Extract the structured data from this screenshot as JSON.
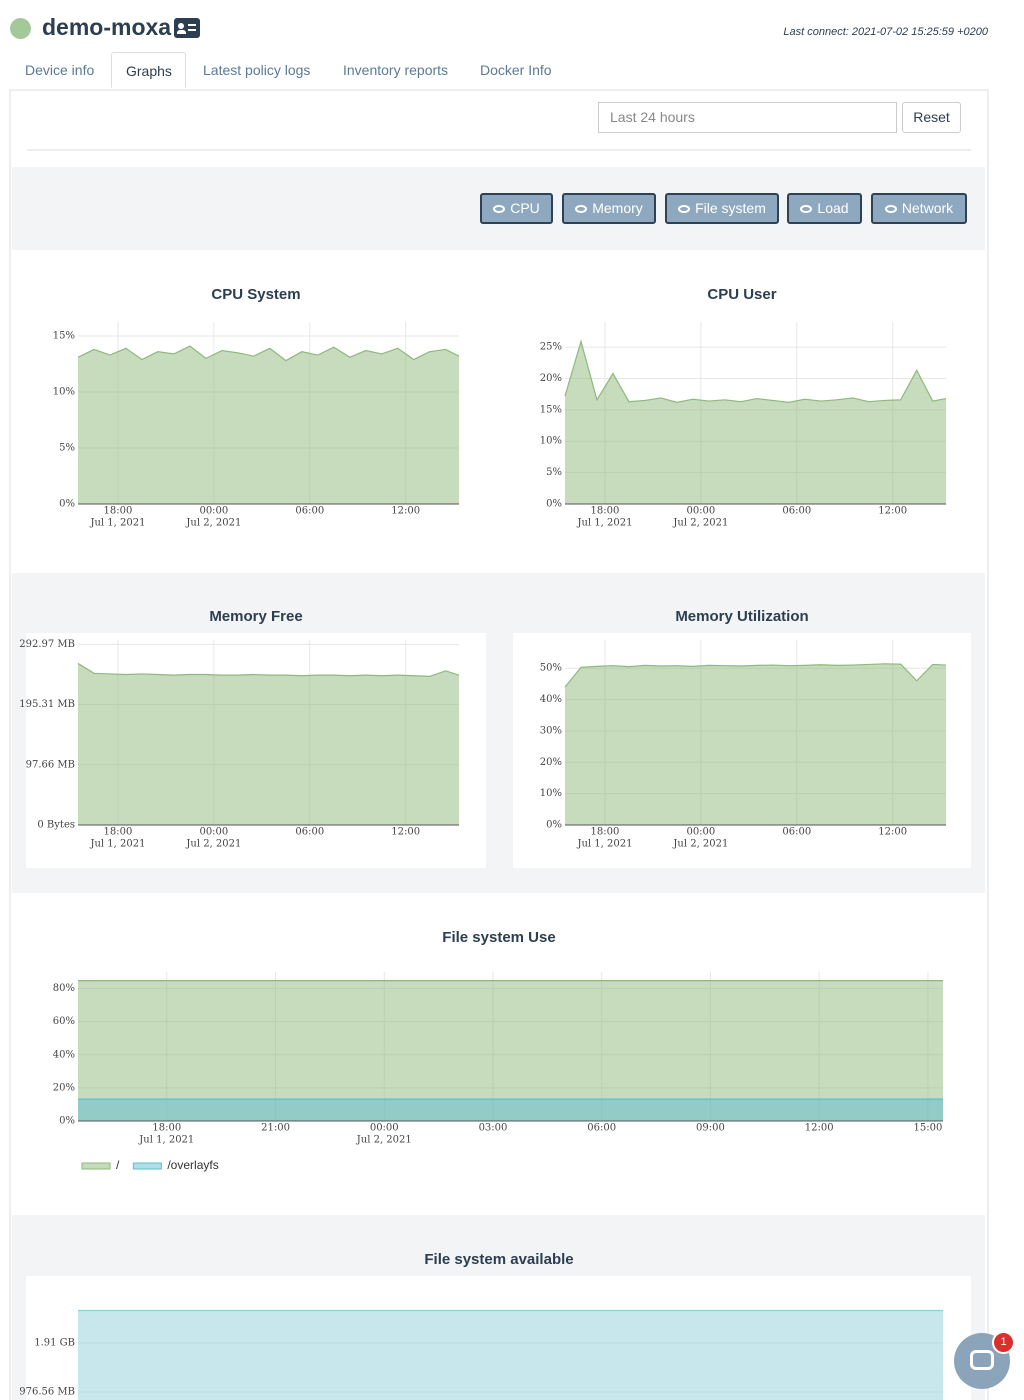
{
  "header": {
    "device": "demo-moxa",
    "last_connect": "Last connect: 2021-07-02 15:25:59 +0200"
  },
  "tabs": [
    "Device info",
    "Graphs",
    "Latest policy logs",
    "Inventory reports",
    "Docker Info"
  ],
  "active_tab": 1,
  "date_range_placeholder": "Last 24 hours",
  "reset_button": "Reset",
  "toggles": [
    "CPU",
    "Memory",
    "File system",
    "Load",
    "Network"
  ],
  "chat_badge": 1,
  "chart_data": [
    {
      "type": "area",
      "title": "CPU System",
      "grid": true,
      "x": [
        "2021-07-01T15:30",
        "2021-07-01T16:30",
        "2021-07-01T17:30",
        "2021-07-01T18:30",
        "2021-07-01T19:30",
        "2021-07-01T20:30",
        "2021-07-01T21:30",
        "2021-07-01T22:30",
        "2021-07-01T23:30",
        "2021-07-02T00:30",
        "2021-07-02T01:30",
        "2021-07-02T02:30",
        "2021-07-02T03:30",
        "2021-07-02T04:30",
        "2021-07-02T05:30",
        "2021-07-02T06:30",
        "2021-07-02T07:30",
        "2021-07-02T08:30",
        "2021-07-02T09:30",
        "2021-07-02T10:30",
        "2021-07-02T11:30",
        "2021-07-02T12:30",
        "2021-07-02T13:30",
        "2021-07-02T14:30",
        "2021-07-02T15:20"
      ],
      "xlim": [
        "2021-07-01T15:30",
        "2021-07-02T15:20"
      ],
      "xticks": [
        {
          "value": "2021-07-01T18:00",
          "label": "18:00",
          "sublabel": "Jul 1, 2021"
        },
        {
          "value": "2021-07-02T00:00",
          "label": "00:00",
          "sublabel": "Jul 2, 2021"
        },
        {
          "value": "2021-07-02T06:00",
          "label": "06:00"
        },
        {
          "value": "2021-07-02T12:00",
          "label": "12:00"
        }
      ],
      "ylim": [
        0,
        16.25
      ],
      "yticks": [
        {
          "value": 0,
          "label": "0%"
        },
        {
          "value": 5,
          "label": "5%"
        },
        {
          "value": 10,
          "label": "10%"
        },
        {
          "value": 15,
          "label": "15%"
        }
      ],
      "series": [
        {
          "color": "#8fb87c",
          "values": [
            13.1,
            13.8,
            13.3,
            13.9,
            12.9,
            13.6,
            13.4,
            14.1,
            13.0,
            13.7,
            13.5,
            13.2,
            13.9,
            12.8,
            13.6,
            13.3,
            14.0,
            13.1,
            13.7,
            13.4,
            13.9,
            12.9,
            13.6,
            13.8,
            13.2
          ]
        }
      ]
    },
    {
      "type": "area",
      "title": "CPU User",
      "grid": true,
      "x": [
        "2021-07-01T15:30",
        "2021-07-01T16:30",
        "2021-07-01T17:30",
        "2021-07-01T18:30",
        "2021-07-01T19:30",
        "2021-07-01T20:30",
        "2021-07-01T21:30",
        "2021-07-01T22:30",
        "2021-07-01T23:30",
        "2021-07-02T00:30",
        "2021-07-02T01:30",
        "2021-07-02T02:30",
        "2021-07-02T03:30",
        "2021-07-02T04:30",
        "2021-07-02T05:30",
        "2021-07-02T06:30",
        "2021-07-02T07:30",
        "2021-07-02T08:30",
        "2021-07-02T09:30",
        "2021-07-02T10:30",
        "2021-07-02T11:30",
        "2021-07-02T12:30",
        "2021-07-02T13:30",
        "2021-07-02T14:30",
        "2021-07-02T15:20"
      ],
      "xlim": [
        "2021-07-01T15:30",
        "2021-07-02T15:20"
      ],
      "xticks": [
        {
          "value": "2021-07-01T18:00",
          "label": "18:00",
          "sublabel": "Jul 1, 2021"
        },
        {
          "value": "2021-07-02T00:00",
          "label": "00:00",
          "sublabel": "Jul 2, 2021"
        },
        {
          "value": "2021-07-02T06:00",
          "label": "06:00"
        },
        {
          "value": "2021-07-02T12:00",
          "label": "12:00"
        }
      ],
      "ylim": [
        0,
        29
      ],
      "yticks": [
        {
          "value": 0,
          "label": "0%"
        },
        {
          "value": 5,
          "label": "5%"
        },
        {
          "value": 10,
          "label": "10%"
        },
        {
          "value": 15,
          "label": "15%"
        },
        {
          "value": 20,
          "label": "20%"
        },
        {
          "value": 25,
          "label": "25%"
        }
      ],
      "series": [
        {
          "color": "#8fb87c",
          "values": [
            17.2,
            25.9,
            16.6,
            20.8,
            16.3,
            16.5,
            16.9,
            16.2,
            16.7,
            16.4,
            16.6,
            16.3,
            16.8,
            16.5,
            16.2,
            16.7,
            16.4,
            16.6,
            16.9,
            16.3,
            16.5,
            16.6,
            21.3,
            16.4,
            16.8
          ]
        }
      ]
    },
    {
      "type": "area",
      "title": "Memory Free",
      "grid": true,
      "x": [
        "2021-07-01T15:30",
        "2021-07-01T16:30",
        "2021-07-01T17:30",
        "2021-07-01T18:30",
        "2021-07-01T19:30",
        "2021-07-01T20:30",
        "2021-07-01T21:30",
        "2021-07-01T22:30",
        "2021-07-01T23:30",
        "2021-07-02T00:30",
        "2021-07-02T01:30",
        "2021-07-02T02:30",
        "2021-07-02T03:30",
        "2021-07-02T04:30",
        "2021-07-02T05:30",
        "2021-07-02T06:30",
        "2021-07-02T07:30",
        "2021-07-02T08:30",
        "2021-07-02T09:30",
        "2021-07-02T10:30",
        "2021-07-02T11:30",
        "2021-07-02T12:30",
        "2021-07-02T13:30",
        "2021-07-02T14:30",
        "2021-07-02T15:20"
      ],
      "xlim": [
        "2021-07-01T15:30",
        "2021-07-02T15:20"
      ],
      "xticks": [
        {
          "value": "2021-07-01T18:00",
          "label": "18:00",
          "sublabel": "Jul 1, 2021"
        },
        {
          "value": "2021-07-02T00:00",
          "label": "00:00",
          "sublabel": "Jul 2, 2021"
        },
        {
          "value": "2021-07-02T06:00",
          "label": "06:00"
        },
        {
          "value": "2021-07-02T12:00",
          "label": "12:00"
        }
      ],
      "ylim": [
        0,
        300
      ],
      "yticks": [
        {
          "value": 0,
          "label": "0 Bytes"
        },
        {
          "value": 97.66,
          "label": "97.66 MB"
        },
        {
          "value": 195.31,
          "label": "195.31 MB"
        },
        {
          "value": 292.97,
          "label": "292.97 MB"
        }
      ],
      "series": [
        {
          "color": "#8fb87c",
          "values": [
            262,
            246,
            245,
            244,
            245,
            244,
            243,
            244,
            244,
            243,
            243,
            244,
            243,
            243,
            242,
            243,
            243,
            242,
            243,
            242,
            243,
            242,
            241,
            250,
            243
          ]
        }
      ]
    },
    {
      "type": "area",
      "title": "Memory Utilization",
      "grid": true,
      "x": [
        "2021-07-01T15:30",
        "2021-07-01T16:30",
        "2021-07-01T17:30",
        "2021-07-01T18:30",
        "2021-07-01T19:30",
        "2021-07-01T20:30",
        "2021-07-01T21:30",
        "2021-07-01T22:30",
        "2021-07-01T23:30",
        "2021-07-02T00:30",
        "2021-07-02T01:30",
        "2021-07-02T02:30",
        "2021-07-02T03:30",
        "2021-07-02T04:30",
        "2021-07-02T05:30",
        "2021-07-02T06:30",
        "2021-07-02T07:30",
        "2021-07-02T08:30",
        "2021-07-02T09:30",
        "2021-07-02T10:30",
        "2021-07-02T11:30",
        "2021-07-02T12:30",
        "2021-07-02T13:30",
        "2021-07-02T14:30",
        "2021-07-02T15:20"
      ],
      "xlim": [
        "2021-07-01T15:30",
        "2021-07-02T15:20"
      ],
      "xticks": [
        {
          "value": "2021-07-01T18:00",
          "label": "18:00",
          "sublabel": "Jul 1, 2021"
        },
        {
          "value": "2021-07-02T00:00",
          "label": "00:00",
          "sublabel": "Jul 2, 2021"
        },
        {
          "value": "2021-07-02T06:00",
          "label": "06:00"
        },
        {
          "value": "2021-07-02T12:00",
          "label": "12:00"
        }
      ],
      "ylim": [
        0,
        59
      ],
      "yticks": [
        {
          "value": 0,
          "label": "0%"
        },
        {
          "value": 10,
          "label": "10%"
        },
        {
          "value": 20,
          "label": "20%"
        },
        {
          "value": 30,
          "label": "30%"
        },
        {
          "value": 40,
          "label": "40%"
        },
        {
          "value": 50,
          "label": "50%"
        }
      ],
      "series": [
        {
          "color": "#8fb87c",
          "values": [
            44,
            50.3,
            50.6,
            50.8,
            50.5,
            50.9,
            50.7,
            50.8,
            50.6,
            50.9,
            50.8,
            50.7,
            50.9,
            51.0,
            50.8,
            50.9,
            51.1,
            50.9,
            51.0,
            51.2,
            51.4,
            51.3,
            46,
            51.2,
            51.0
          ]
        }
      ]
    },
    {
      "type": "area",
      "title": "File system Use",
      "grid": true,
      "legend": "bottom-left",
      "x": [
        "2021-07-01T15:33",
        "2021-07-02T15:25"
      ],
      "xlim": [
        "2021-07-01T15:33",
        "2021-07-02T15:25"
      ],
      "xticks": [
        {
          "value": "2021-07-01T18:00",
          "label": "18:00",
          "sublabel": "Jul 1, 2021"
        },
        {
          "value": "2021-07-01T21:00",
          "label": "21:00"
        },
        {
          "value": "2021-07-02T00:00",
          "label": "00:00",
          "sublabel": "Jul 2, 2021"
        },
        {
          "value": "2021-07-02T03:00",
          "label": "03:00"
        },
        {
          "value": "2021-07-02T06:00",
          "label": "06:00"
        },
        {
          "value": "2021-07-02T09:00",
          "label": "09:00"
        },
        {
          "value": "2021-07-02T12:00",
          "label": "12:00"
        },
        {
          "value": "2021-07-02T15:00",
          "label": "15:00"
        }
      ],
      "ylim": [
        0,
        90
      ],
      "yticks": [
        {
          "value": 0,
          "label": "0%"
        },
        {
          "value": 20,
          "label": "20%"
        },
        {
          "value": 40,
          "label": "40%"
        },
        {
          "value": 60,
          "label": "60%"
        },
        {
          "value": 80,
          "label": "80%"
        }
      ],
      "series": [
        {
          "name": "/",
          "color": "#8fb87c",
          "values": [
            84.8,
            84.8
          ]
        },
        {
          "name": "/overlayfs",
          "color": "#5fbdd0",
          "values": [
            13.2,
            13.2
          ]
        }
      ]
    },
    {
      "type": "area",
      "title": "File system available",
      "grid": true,
      "x": [
        "2021-07-01T15:33",
        "2021-07-02T15:25"
      ],
      "xlim": [
        "2021-07-01T15:33",
        "2021-07-02T15:25"
      ],
      "xticks": [],
      "ylim": [
        0,
        2966
      ],
      "yticks": [
        {
          "value": 976.56,
          "label": "976.56 MB"
        },
        {
          "value": 1953.12,
          "label": "1.91 GB"
        }
      ],
      "series": [
        {
          "color": "#8fd0dc",
          "values": [
            2598,
            2598
          ]
        }
      ]
    }
  ]
}
